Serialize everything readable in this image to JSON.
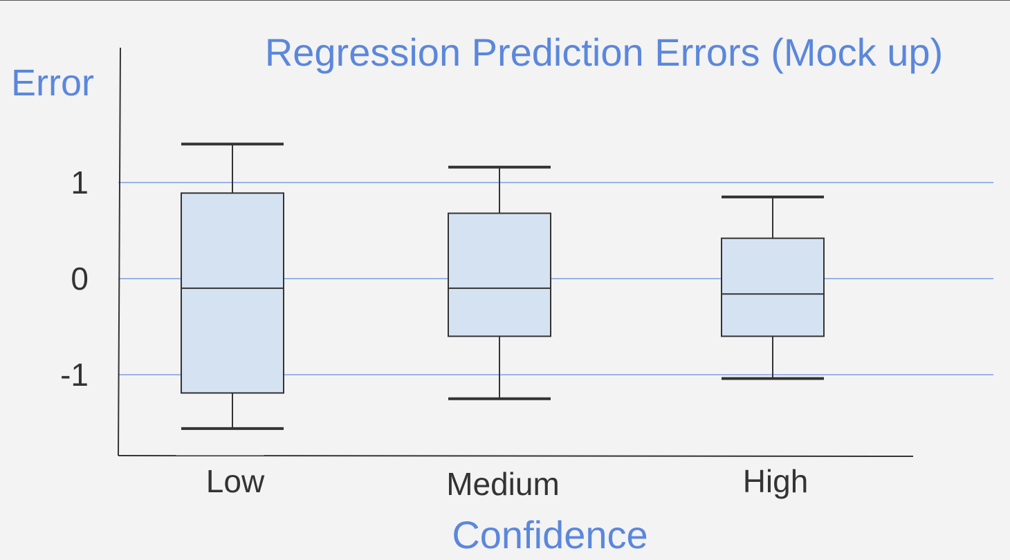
{
  "chart_data": {
    "type": "box",
    "title": "Regression Prediction Errors (Mock up)",
    "xlabel": "Confidence",
    "ylabel": "Error",
    "yticks": [
      1,
      0,
      -1
    ],
    "ylim": [
      -1.85,
      2.4
    ],
    "grid": "horizontal",
    "categories": [
      "Low",
      "Medium",
      "High"
    ],
    "boxes": [
      {
        "category": "Low",
        "whisker_high": 1.4,
        "q3": 0.89,
        "median": -0.1,
        "q1": -1.19,
        "whisker_low": -1.56
      },
      {
        "category": "Medium",
        "whisker_high": 1.16,
        "q3": 0.68,
        "median": -0.1,
        "q1": -0.6,
        "whisker_low": -1.25
      },
      {
        "category": "High",
        "whisker_high": 0.85,
        "q3": 0.42,
        "median": -0.16,
        "q1": -0.6,
        "whisker_low": -1.04
      }
    ],
    "colors": {
      "accent": "#5b87dc",
      "box_fill": "#d5e2f2",
      "box_stroke": "#333333",
      "axis": "#333333",
      "grid": "#7a9ee6"
    }
  }
}
